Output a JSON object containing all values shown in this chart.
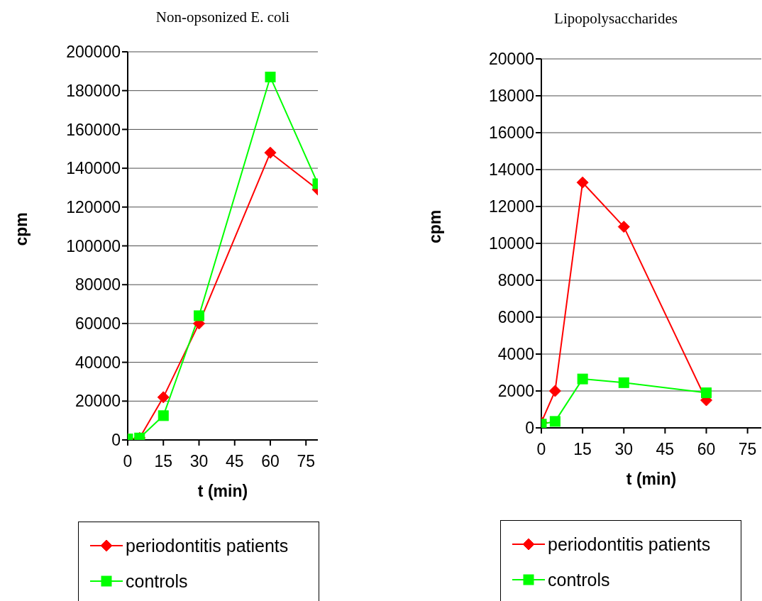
{
  "chart_data": [
    {
      "type": "line",
      "title": "Non-opsonized E. coli",
      "xlabel": "t (min)",
      "ylabel": "cpm",
      "x": [
        0,
        5,
        15,
        30,
        60,
        80
      ],
      "xlim": [
        0,
        80
      ],
      "xticks": [
        0,
        15,
        30,
        45,
        60,
        75
      ],
      "ylim": [
        0,
        200000
      ],
      "yticks": [
        0,
        20000,
        40000,
        60000,
        80000,
        100000,
        120000,
        140000,
        160000,
        180000,
        200000
      ],
      "grid": "y",
      "legend": "bottom",
      "series": [
        {
          "name": "periodontitis patients",
          "color": "#ff0000",
          "marker": "diamond",
          "values": [
            500,
            1000,
            22000,
            60000,
            148000,
            129000
          ]
        },
        {
          "name": "controls",
          "color": "#00ff00",
          "marker": "square",
          "values": [
            500,
            1000,
            12500,
            64000,
            187000,
            132000
          ]
        }
      ]
    },
    {
      "type": "line",
      "title": "Lipopolysaccharides",
      "xlabel": "t (min)",
      "ylabel": "cpm",
      "x": [
        0,
        5,
        15,
        30,
        60
      ],
      "xlim": [
        0,
        80
      ],
      "xticks": [
        0,
        15,
        30,
        45,
        60,
        75
      ],
      "ylim": [
        0,
        20000
      ],
      "yticks": [
        0,
        2000,
        4000,
        6000,
        8000,
        10000,
        12000,
        14000,
        16000,
        18000,
        20000
      ],
      "grid": "y",
      "legend": "bottom",
      "series": [
        {
          "name": "periodontitis patients",
          "color": "#ff0000",
          "marker": "diamond",
          "values": [
            300,
            2000,
            13300,
            10900,
            1500
          ]
        },
        {
          "name": "controls",
          "color": "#00ff00",
          "marker": "square",
          "values": [
            200,
            350,
            2650,
            2450,
            1900
          ]
        }
      ]
    }
  ]
}
